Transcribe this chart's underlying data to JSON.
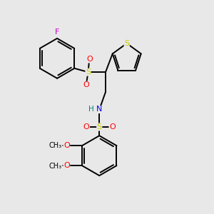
{
  "bg": "#e8e8e8",
  "bond_color": "#000000",
  "lw": 1.4,
  "atom_colors": {
    "F": "#cc00cc",
    "S": "#cccc00",
    "O": "#ff0000",
    "N": "#0000ff",
    "H": "#008080",
    "C": "#000000"
  },
  "font_size": 7.5
}
